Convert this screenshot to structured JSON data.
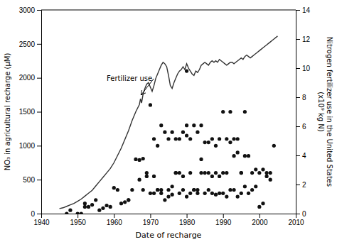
{
  "chart_data": {
    "type": "scatter",
    "xlabel": "Date of recharge",
    "ylabel": "NO₃ in agricultural recharge (μM)",
    "y2label": "Nitrogen fertilizer use in the United States\n(x10⁹ kg N)",
    "xlim": [
      1940,
      2010
    ],
    "ylim": [
      0,
      3000
    ],
    "y2lim": [
      0,
      14
    ],
    "xticks": [
      1940,
      1950,
      1960,
      1970,
      1980,
      1990,
      2000,
      2010
    ],
    "yticks": [
      0,
      500,
      1000,
      1500,
      2000,
      2500,
      3000
    ],
    "y2ticks": [
      0,
      2,
      4,
      6,
      8,
      10,
      12,
      14
    ],
    "grid": false,
    "annotations": [
      {
        "text": "Fertilizer use",
        "x": 1967.5,
        "y": 1750,
        "text_x": 1958,
        "text_y": 1950
      }
    ],
    "series": [
      {
        "type": "scatter",
        "color": "#111111",
        "x": [
          1947,
          1948,
          1950,
          1951,
          1952,
          1952,
          1953,
          1954,
          1955,
          1956,
          1957,
          1958,
          1959,
          1960,
          1961,
          1963,
          1964,
          1966,
          1967,
          1968,
          1969,
          1970,
          1971,
          1972,
          1973,
          1974,
          1975,
          1976,
          1977,
          1978,
          1979,
          1980,
          1981,
          1982,
          1983,
          1984,
          1985,
          1986,
          1987,
          1988,
          1989,
          1990,
          1991,
          1992,
          1993,
          1994,
          1995,
          1996,
          1997,
          1998,
          1999,
          2000,
          2001,
          2002,
          2003,
          2004,
          1965,
          1967,
          1969,
          1970,
          1971,
          1972,
          1973,
          1974,
          1975,
          1976,
          1977,
          1978,
          1979,
          1980,
          1980,
          1981,
          1982,
          1983,
          1984,
          1985,
          1986,
          1987,
          1988,
          1989,
          1990,
          1991,
          1992,
          1993,
          1994,
          1995,
          1996,
          1997,
          1998,
          1999,
          2000,
          2001,
          2002,
          2003,
          1975,
          1976,
          1977,
          1978,
          1979,
          1980,
          1981,
          1982,
          1983,
          1984,
          1985,
          1986,
          1987,
          1988,
          1989,
          1990,
          1991,
          1992,
          1993,
          1994,
          1995,
          1996,
          1962,
          1964,
          1968,
          1971,
          1972,
          1973
        ],
        "values": [
          0,
          50,
          0,
          0,
          100,
          150,
          100,
          130,
          200,
          50,
          80,
          120,
          100,
          380,
          350,
          170,
          200,
          800,
          790,
          810,
          550,
          300,
          550,
          350,
          300,
          200,
          250,
          280,
          600,
          300,
          350,
          250,
          300,
          350,
          300,
          800,
          300,
          350,
          300,
          280,
          300,
          300,
          250,
          350,
          350,
          250,
          300,
          400,
          300,
          350,
          400,
          100,
          150,
          550,
          500,
          1000,
          350,
          500,
          600,
          1600,
          1100,
          1000,
          1300,
          1200,
          1100,
          1200,
          1100,
          1100,
          1200,
          1150,
          1300,
          1100,
          1300,
          1200,
          1300,
          1050,
          1050,
          1100,
          1000,
          1100,
          1500,
          1100,
          1050,
          850,
          900,
          600,
          850,
          850,
          600,
          650,
          600,
          650,
          600,
          600,
          350,
          400,
          600,
          600,
          550,
          2100,
          600,
          350,
          350,
          600,
          600,
          600,
          550,
          600,
          550,
          600,
          600,
          1500,
          1100,
          1100,
          600,
          1500,
          150,
          200,
          350,
          300,
          350,
          350
        ]
      },
      {
        "type": "line",
        "axis": "y2",
        "color": "#333333",
        "x": [
          1945,
          1946,
          1947,
          1948,
          1949,
          1950,
          1951,
          1952,
          1953,
          1954,
          1955,
          1956,
          1957,
          1958,
          1959,
          1960,
          1961,
          1962,
          1963,
          1964,
          1965,
          1966,
          1967,
          1967.3,
          1967.6,
          1968,
          1968.5,
          1969,
          1969.5,
          1970,
          1970.5,
          1971,
          1971.5,
          1972,
          1972.5,
          1973,
          1973.5,
          1974,
          1974.5,
          1975,
          1975.5,
          1976,
          1976.5,
          1977,
          1977.5,
          1978,
          1978.5,
          1979,
          1979.5,
          1980,
          1980.5,
          1981,
          1981.5,
          1982,
          1982.5,
          1983,
          1983.5,
          1984,
          1984.5,
          1985,
          1985.5,
          1986,
          1986.5,
          1987,
          1987.5,
          1988,
          1988.5,
          1989,
          1989.5,
          1990,
          1990.5,
          1991,
          1991.5,
          1992,
          1992.5,
          1993,
          1993.5,
          1994,
          1994.5,
          1995,
          1995.5,
          1996,
          1996.5,
          1997,
          1997.5,
          1998,
          1998.5,
          1999,
          1999.5,
          2000,
          2000.5,
          2001,
          2001.5,
          2002,
          2002.5,
          2003,
          2003.5,
          2004,
          2005
        ],
        "values": [
          0.35,
          0.4,
          0.5,
          0.6,
          0.7,
          0.85,
          1.0,
          1.2,
          1.4,
          1.6,
          1.9,
          2.2,
          2.5,
          2.8,
          3.1,
          3.5,
          4.0,
          4.5,
          5.1,
          5.7,
          6.4,
          7.0,
          7.5,
          7.9,
          7.6,
          8.2,
          8.6,
          8.9,
          9.0,
          8.7,
          8.4,
          8.8,
          9.3,
          9.6,
          9.9,
          10.2,
          10.4,
          10.3,
          10.1,
          9.5,
          8.8,
          8.6,
          9.0,
          9.3,
          9.6,
          9.8,
          9.9,
          10.1,
          9.9,
          10.3,
          10.0,
          9.8,
          9.6,
          9.5,
          9.8,
          9.7,
          9.9,
          10.2,
          10.3,
          10.4,
          10.3,
          10.2,
          10.4,
          10.5,
          10.4,
          10.5,
          10.4,
          10.6,
          10.5,
          10.4,
          10.3,
          10.2,
          10.3,
          10.4,
          10.4,
          10.3,
          10.4,
          10.5,
          10.6,
          10.7,
          10.6,
          10.8,
          10.9,
          10.8,
          10.7,
          10.8,
          10.9,
          11.0,
          11.1,
          11.2,
          11.3,
          11.4,
          11.5,
          11.6,
          11.7,
          11.8,
          11.9,
          12.0,
          12.2
        ]
      }
    ]
  }
}
